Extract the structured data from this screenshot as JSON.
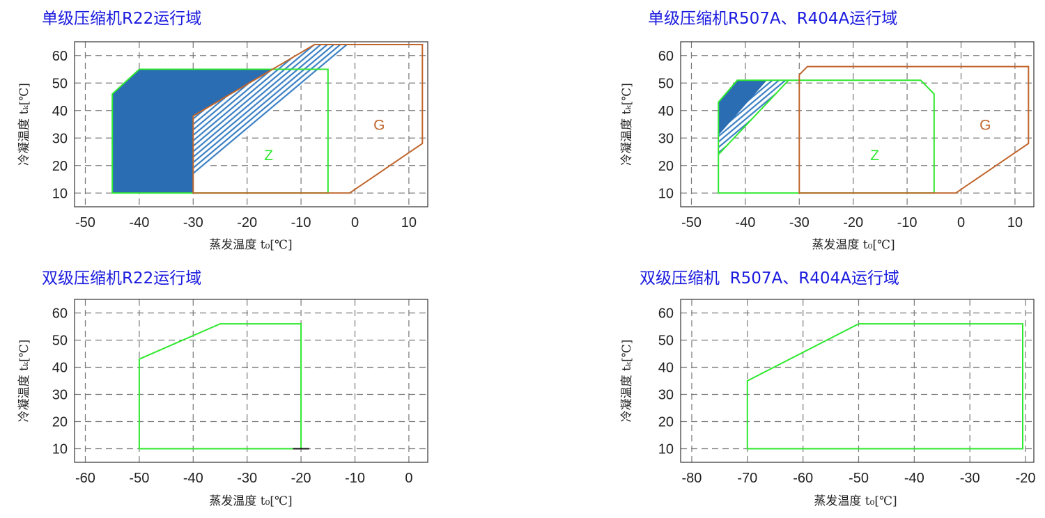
{
  "colors": {
    "title": "#1a1adf",
    "grid": "#777777",
    "frame": "#333333",
    "fill_blue": "#2a6db3",
    "hatch": "#3a7fc4",
    "green": "#2ee82e",
    "orange": "#c0652c"
  },
  "chart_data": [
    {
      "type": "area",
      "title": "单级压缩机R22运行域",
      "xlabel": "蒸发温度 t₀[℃]",
      "ylabel": "冷凝温度 tₖ[℃]",
      "xlim": [
        -52,
        13.5
      ],
      "ylim": [
        5,
        65
      ],
      "xticks": [
        -50,
        -40,
        -30,
        -20,
        -10,
        0,
        10
      ],
      "yticks": [
        10,
        20,
        30,
        40,
        50,
        60
      ],
      "grid": true,
      "regions": [
        {
          "style": "fill",
          "color": "#2a6db3",
          "points": [
            [
              -45,
              10
            ],
            [
              -45,
              46
            ],
            [
              -40,
              55
            ],
            [
              -15,
              55
            ],
            [
              -30,
              38
            ],
            [
              -30,
              10
            ]
          ]
        },
        {
          "style": "hatch",
          "color": "#3a7fc4",
          "points": [
            [
              -30,
              38
            ],
            [
              -7.5,
              64
            ],
            [
              -1,
              64
            ],
            [
              -30,
              16
            ]
          ]
        },
        {
          "style": "outline",
          "color": "#2ee82e",
          "label": "Z",
          "label_at": [
            -16,
            24
          ],
          "points": [
            [
              -45,
              10
            ],
            [
              -45,
              46
            ],
            [
              -40,
              55
            ],
            [
              -5,
              55
            ],
            [
              -5,
              10
            ]
          ]
        },
        {
          "style": "outline",
          "color": "#c0652c",
          "label": "G",
          "label_at": [
            4.5,
            35
          ],
          "points": [
            [
              -30,
              10
            ],
            [
              -30,
              38
            ],
            [
              -7.5,
              64
            ],
            [
              12.5,
              64
            ],
            [
              12.5,
              28
            ],
            [
              -1,
              10
            ]
          ]
        }
      ]
    },
    {
      "type": "area",
      "title": "单级压缩机R507A、R404A运行域",
      "xlabel": "蒸发温度 t₀[℃]",
      "ylabel": "冷凝温度 tₖ[℃]",
      "xlim": [
        -52,
        13.5
      ],
      "ylim": [
        5,
        65
      ],
      "xticks": [
        -50,
        -40,
        -30,
        -20,
        -10,
        0,
        10
      ],
      "yticks": [
        10,
        20,
        30,
        40,
        50,
        60
      ],
      "grid": true,
      "regions": [
        {
          "style": "fill",
          "color": "#2a6db3",
          "points": [
            [
              -45,
              31
            ],
            [
              -45,
              43
            ],
            [
              -41.5,
              51
            ],
            [
              -36,
              51
            ]
          ]
        },
        {
          "style": "hatch",
          "color": "#3a7fc4",
          "points": [
            [
              -45,
              24
            ],
            [
              -45,
              31
            ],
            [
              -36,
              51
            ],
            [
              -32,
              51
            ]
          ]
        },
        {
          "style": "outline",
          "color": "#2ee82e",
          "label": "Z",
          "label_at": [
            -16,
            24
          ],
          "points": [
            [
              -45,
              10
            ],
            [
              -45,
              43
            ],
            [
              -41.5,
              51
            ],
            [
              -7.5,
              51
            ],
            [
              -5,
              46
            ],
            [
              -5,
              10
            ]
          ]
        },
        {
          "style": "line",
          "color": "#2ee82e",
          "points": [
            [
              -45,
              24
            ],
            [
              -32,
              51
            ]
          ]
        },
        {
          "style": "outline",
          "color": "#c0652c",
          "label": "G",
          "label_at": [
            4.5,
            35
          ],
          "points": [
            [
              -30,
              10
            ],
            [
              -30,
              53
            ],
            [
              -28.5,
              56
            ],
            [
              12.5,
              56
            ],
            [
              12.5,
              28
            ],
            [
              -1,
              10
            ]
          ]
        }
      ]
    },
    {
      "type": "area",
      "title": "双级压缩机R22运行域",
      "xlabel": "蒸发温度 t₀[℃]",
      "ylabel": "冷凝温度 tₖ[℃]",
      "xlim": [
        -62,
        3.5
      ],
      "ylim": [
        5,
        65
      ],
      "xticks": [
        -60,
        -50,
        -40,
        -30,
        -20,
        -10,
        0
      ],
      "yticks": [
        10,
        20,
        30,
        40,
        50,
        60
      ],
      "grid": true,
      "regions": [
        {
          "style": "outline",
          "color": "#2ee82e",
          "points": [
            [
              -50,
              10
            ],
            [
              -50,
              43
            ],
            [
              -35,
              56
            ],
            [
              -20,
              56
            ],
            [
              -20,
              10
            ]
          ]
        },
        {
          "style": "line",
          "color": "#111111",
          "points": [
            [
              -21.5,
              10
            ],
            [
              -18.5,
              10
            ]
          ]
        }
      ]
    },
    {
      "type": "area",
      "title": "双级压缩机  R507A、R404A运行域",
      "xlabel": "蒸发温度 t₀[℃]",
      "ylabel": "冷凝温度 tₖ[℃]",
      "xlim": [
        -82,
        -18.5
      ],
      "ylim": [
        5,
        65
      ],
      "xticks": [
        -80,
        -70,
        -60,
        -50,
        -40,
        -30,
        -20
      ],
      "yticks": [
        10,
        20,
        30,
        40,
        50,
        60
      ],
      "grid": true,
      "regions": [
        {
          "style": "outline",
          "color": "#2ee82e",
          "points": [
            [
              -70,
              10
            ],
            [
              -70,
              35
            ],
            [
              -50,
              56
            ],
            [
              -20.5,
              56
            ],
            [
              -20.5,
              10
            ]
          ]
        }
      ]
    }
  ]
}
